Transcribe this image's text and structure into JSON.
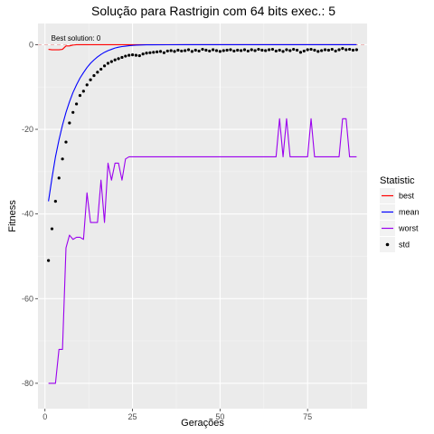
{
  "chart_data": {
    "type": "line",
    "title": "Solução para Rastrigin com 64 bits exec.: 5",
    "xlabel": "Gerações",
    "ylabel": "Fitness",
    "xlim": [
      -2,
      92
    ],
    "ylim": [
      -86,
      5
    ],
    "x_ticks": [
      0,
      25,
      50,
      75
    ],
    "y_ticks": [
      0,
      -20,
      -40,
      -60,
      -80
    ],
    "grid": true,
    "legend_position": "right",
    "legend_title": "Statistic",
    "hline": {
      "y": 0,
      "color": "#e6a0a0",
      "style": "dashed"
    },
    "annotation": {
      "text": "Best solution: 0",
      "x": 1,
      "y": 0.5
    },
    "series": [
      {
        "name": "best",
        "color": "#ff0000",
        "mark": "line",
        "x": [
          1,
          2,
          3,
          4,
          5,
          6,
          7,
          8,
          9,
          10,
          11,
          12,
          13,
          14,
          15,
          16,
          17,
          18,
          19,
          20,
          21,
          22,
          23,
          24,
          25,
          26,
          27,
          28,
          29,
          30,
          31,
          32,
          33,
          34,
          35,
          36,
          37,
          38,
          39,
          40,
          41,
          42,
          43,
          44,
          45,
          46,
          47,
          48,
          49,
          50,
          51,
          52,
          53,
          54,
          55,
          56,
          57,
          58,
          59,
          60,
          61,
          62,
          63,
          64,
          65,
          66,
          67,
          68,
          69,
          70,
          71,
          72,
          73,
          74,
          75,
          76,
          77,
          78,
          79,
          80,
          81,
          82,
          83,
          84,
          85,
          86,
          87,
          88,
          89
        ],
        "y": [
          -1.1,
          -1.2,
          -1.2,
          -1.2,
          -1.1,
          -0.3,
          -0.3,
          -0.1,
          0,
          0,
          0,
          0,
          0,
          0,
          0,
          0,
          0,
          0,
          0,
          0,
          0,
          0,
          0,
          0,
          0,
          0,
          0,
          0,
          0,
          0,
          0,
          0,
          0,
          0,
          0,
          0,
          0,
          0,
          0,
          0,
          0,
          0,
          0,
          0,
          0,
          0,
          0,
          0,
          0,
          0,
          0,
          0,
          0,
          0,
          0,
          0,
          0,
          0,
          0,
          0,
          0,
          0,
          0,
          0,
          0,
          0,
          0,
          0,
          0,
          0,
          0,
          0,
          0,
          0,
          0,
          0,
          0,
          0,
          0,
          0,
          0,
          0,
          0,
          0,
          0,
          0,
          0,
          0,
          0
        ]
      },
      {
        "name": "mean",
        "color": "#0000ff",
        "mark": "line",
        "x": [
          1,
          2,
          3,
          4,
          5,
          6,
          7,
          8,
          9,
          10,
          11,
          12,
          13,
          14,
          15,
          16,
          17,
          18,
          19,
          20,
          21,
          22,
          23,
          24,
          25,
          26,
          27,
          28,
          29,
          30,
          35,
          40,
          45,
          50,
          55,
          60,
          65,
          70,
          75,
          80,
          85,
          89
        ],
        "y": [
          -37,
          -31.5,
          -26.5,
          -22.5,
          -19,
          -16,
          -13.5,
          -11.3,
          -9.5,
          -7.9,
          -6.6,
          -5.4,
          -4.4,
          -3.6,
          -2.9,
          -2.3,
          -1.8,
          -1.4,
          -1.1,
          -0.8,
          -0.6,
          -0.45,
          -0.35,
          -0.25,
          -0.18,
          -0.12,
          -0.09,
          -0.06,
          -0.04,
          -0.03,
          -0.02,
          -0.01,
          0,
          0,
          0,
          0,
          0,
          0,
          0,
          0,
          0,
          0
        ]
      },
      {
        "name": "worst",
        "color": "#9b00ee",
        "mark": "line",
        "x": [
          1,
          2,
          3,
          4,
          5,
          6,
          7,
          8,
          9,
          10,
          11,
          12,
          13,
          14,
          15,
          16,
          17,
          18,
          19,
          20,
          21,
          22,
          23,
          24,
          25,
          26,
          27,
          28,
          29,
          30,
          31,
          32,
          33,
          34,
          35,
          36,
          37,
          38,
          39,
          40,
          41,
          42,
          43,
          44,
          45,
          46,
          47,
          48,
          49,
          50,
          51,
          52,
          53,
          54,
          55,
          56,
          57,
          58,
          59,
          60,
          61,
          62,
          63,
          64,
          65,
          66,
          67,
          68,
          69,
          70,
          71,
          72,
          73,
          74,
          75,
          76,
          77,
          78,
          79,
          80,
          81,
          82,
          83,
          84,
          85,
          86,
          87,
          88,
          89
        ],
        "y": [
          -80,
          -80,
          -80,
          -72,
          -72,
          -48,
          -45,
          -46,
          -45.5,
          -45.5,
          -46,
          -35,
          -42,
          -42,
          -42,
          -32,
          -42,
          -28,
          -32,
          -28,
          -28,
          -32,
          -27,
          -26.5,
          -26.5,
          -26.5,
          -26.5,
          -26.5,
          -26.5,
          -26.5,
          -26.5,
          -26.5,
          -26.5,
          -26.5,
          -26.5,
          -26.5,
          -26.5,
          -26.5,
          -26.5,
          -26.5,
          -26.5,
          -26.5,
          -26.5,
          -26.5,
          -26.5,
          -26.5,
          -26.5,
          -26.5,
          -26.5,
          -26.5,
          -26.5,
          -26.5,
          -26.5,
          -26.5,
          -26.5,
          -26.5,
          -26.5,
          -26.5,
          -26.5,
          -26.5,
          -26.5,
          -26.5,
          -26.5,
          -26.5,
          -26.5,
          -26.5,
          -17.5,
          -26.5,
          -17.5,
          -26.5,
          -26.5,
          -26.5,
          -26.5,
          -26.5,
          -26.5,
          -17.5,
          -26.5,
          -26.5,
          -26.5,
          -26.5,
          -26.5,
          -26.5,
          -26.5,
          -26.5,
          -17.5,
          -17.5,
          -26.5,
          -26.5,
          -26.5
        ]
      },
      {
        "name": "std",
        "color": "#000000",
        "mark": "point",
        "x": [
          1,
          2,
          3,
          4,
          5,
          6,
          7,
          8,
          9,
          10,
          11,
          12,
          13,
          14,
          15,
          16,
          17,
          18,
          19,
          20,
          21,
          22,
          23,
          24,
          25,
          26,
          27,
          28,
          29,
          30,
          31,
          32,
          33,
          34,
          35,
          36,
          37,
          38,
          39,
          40,
          41,
          42,
          43,
          44,
          45,
          46,
          47,
          48,
          49,
          50,
          51,
          52,
          53,
          54,
          55,
          56,
          57,
          58,
          59,
          60,
          61,
          62,
          63,
          64,
          65,
          66,
          67,
          68,
          69,
          70,
          71,
          72,
          73,
          74,
          75,
          76,
          77,
          78,
          79,
          80,
          81,
          82,
          83,
          84,
          85,
          86,
          87,
          88,
          89
        ],
        "y": [
          -51,
          -43.5,
          -37,
          -31.5,
          -27,
          -23,
          -18.5,
          -16,
          -14,
          -12,
          -11,
          -9.5,
          -8.3,
          -7.3,
          -6.5,
          -5.8,
          -5,
          -4.4,
          -4,
          -3.6,
          -3.3,
          -3,
          -2.7,
          -2.5,
          -2.4,
          -2.5,
          -2.6,
          -2.2,
          -2,
          -1.9,
          -1.8,
          -1.7,
          -1.6,
          -1.9,
          -1.5,
          -1.4,
          -1.6,
          -1.3,
          -1.5,
          -1.4,
          -1.2,
          -1.6,
          -1.3,
          -1.5,
          -1.1,
          -1.3,
          -1.5,
          -1.2,
          -1.4,
          -1.6,
          -1.4,
          -1.3,
          -1.2,
          -1.5,
          -1.3,
          -1.4,
          -1.2,
          -1.5,
          -1.2,
          -1.4,
          -1.1,
          -1.3,
          -1.4,
          -1.2,
          -1.1,
          -1.5,
          -1.3,
          -1.6,
          -1.2,
          -1.4,
          -1.1,
          -1.3,
          -1.8,
          -1.5,
          -1.2,
          -1.1,
          -1.3,
          -1.6,
          -1.4,
          -1.2,
          -1.3,
          -1.1,
          -1.5,
          -1.2,
          -0.9,
          -1.2,
          -1.1,
          -1.3,
          -1.2
        ]
      }
    ]
  }
}
